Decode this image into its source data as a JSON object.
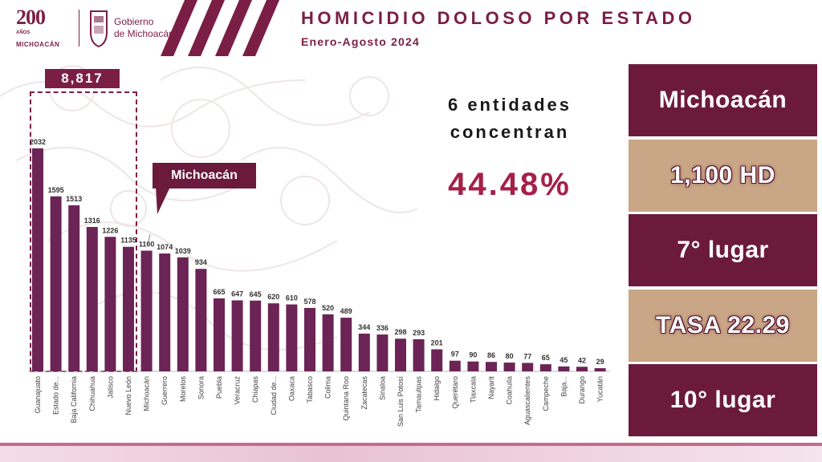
{
  "header": {
    "logo_number": "200",
    "logo_anos": "AÑOS",
    "logo_state": "MICHOACÁN",
    "gov_line1": "Gobierno",
    "gov_line2": "de Michoacán",
    "title": "HOMICIDIO DOLOSO POR ESTADO",
    "subtitle": "Enero-Agosto 2024"
  },
  "highlight": {
    "top_group_total": "8,817",
    "callout_label": "Michoacán"
  },
  "concentration": {
    "line1": "6 entidades",
    "line2": "concentran",
    "percent": "44.48%"
  },
  "panels": [
    {
      "text": "Michoacán",
      "style": "dark"
    },
    {
      "text": "1,100 HD",
      "style": "tan"
    },
    {
      "text": "7° lugar",
      "style": "dark"
    },
    {
      "text": "TASA 22.29",
      "style": "tan"
    },
    {
      "text": "10° lugar",
      "style": "dark"
    }
  ],
  "colors": {
    "bar": "#6b2455",
    "accent": "#7b1e46",
    "percent": "#a52048",
    "tan": "#c9a685"
  },
  "chart_data": {
    "type": "bar",
    "title": "HOMICIDIO DOLOSO POR ESTADO",
    "xlabel": "",
    "ylabel": "",
    "ylim": [
      0,
      2200
    ],
    "grid": false,
    "categories": [
      "Guanajuato",
      "Estado de...",
      "Baja California",
      "Chihuahua",
      "Jalisco",
      "Nuevo León",
      "Michoacán",
      "Guerrero",
      "Morelos",
      "Sonora",
      "Puebla",
      "Veracruz",
      "Chiapas",
      "Ciudad de...",
      "Oaxaca",
      "Tabasco",
      "Colima",
      "Quintana Roo",
      "Zacatecas",
      "Sinaloa",
      "San Luis Potosí",
      "Tamaulipas",
      "Hidalgo",
      "Querétaro",
      "Tlaxcala",
      "Nayarit",
      "Coahuila",
      "Aguascalientes",
      "Campeche",
      "Baja...",
      "Durango",
      "Yucatán"
    ],
    "values": [
      2032,
      1595,
      1513,
      1316,
      1226,
      1135,
      1100,
      1074,
      1039,
      934,
      665,
      647,
      645,
      620,
      610,
      578,
      520,
      489,
      344,
      336,
      298,
      293,
      201,
      97,
      90,
      86,
      80,
      77,
      65,
      45,
      42,
      29
    ]
  }
}
